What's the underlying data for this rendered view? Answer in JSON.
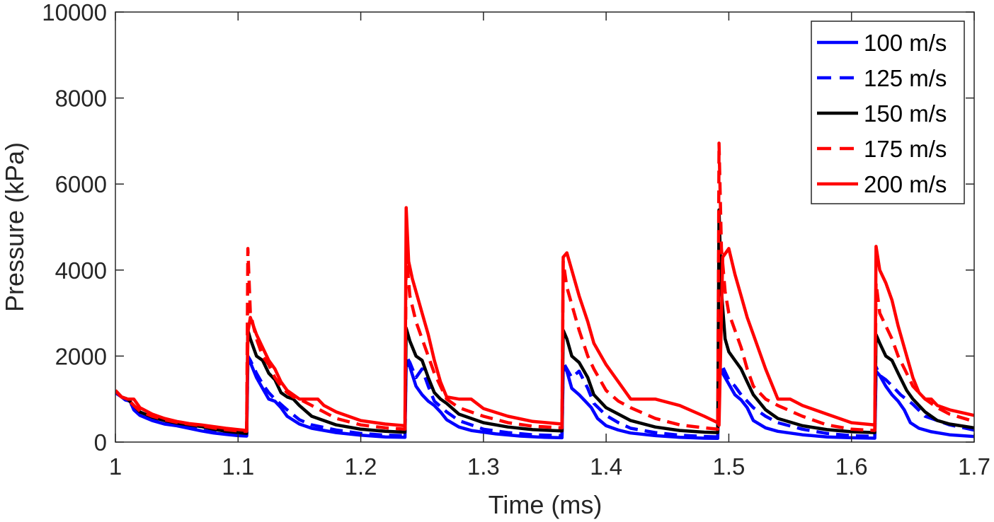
{
  "chart_data": {
    "type": "line",
    "title": "",
    "xlabel": "Time (ms)",
    "ylabel": "Pressure (kPa)",
    "xlim": [
      1,
      1.7
    ],
    "ylim": [
      0,
      10000
    ],
    "xticks": [
      "1",
      "1.1",
      "1.2",
      "1.3",
      "1.4",
      "1.5",
      "1.6",
      "1.7"
    ],
    "yticks": [
      "0",
      "2000",
      "4000",
      "6000",
      "8000",
      "10000"
    ],
    "legend_position": "top-right",
    "series": [
      {
        "name": "100 m/s",
        "color": "#0000ff",
        "style": "solid",
        "x": [
          1.0,
          1.005,
          1.008,
          1.012,
          1.015,
          1.02,
          1.03,
          1.04,
          1.05,
          1.06,
          1.07,
          1.08,
          1.09,
          1.1,
          1.107,
          1.108,
          1.11,
          1.115,
          1.12,
          1.125,
          1.13,
          1.135,
          1.14,
          1.15,
          1.16,
          1.18,
          1.2,
          1.22,
          1.236,
          1.237,
          1.24,
          1.245,
          1.25,
          1.255,
          1.26,
          1.265,
          1.27,
          1.28,
          1.29,
          1.31,
          1.33,
          1.35,
          1.364,
          1.365,
          1.368,
          1.372,
          1.378,
          1.383,
          1.388,
          1.393,
          1.4,
          1.41,
          1.42,
          1.44,
          1.46,
          1.48,
          1.491,
          1.492,
          1.495,
          1.5,
          1.505,
          1.51,
          1.515,
          1.52,
          1.53,
          1.54,
          1.56,
          1.58,
          1.6,
          1.619,
          1.62,
          1.623,
          1.628,
          1.633,
          1.638,
          1.643,
          1.648,
          1.655,
          1.665,
          1.68,
          1.7
        ],
        "y": [
          1150,
          1050,
          980,
          950,
          750,
          620,
          500,
          420,
          380,
          320,
          260,
          210,
          180,
          150,
          140,
          1900,
          1850,
          1500,
          1250,
          1000,
          950,
          800,
          600,
          420,
          320,
          220,
          160,
          120,
          110,
          1850,
          1750,
          1300,
          1100,
          950,
          850,
          700,
          520,
          350,
          270,
          190,
          140,
          110,
          100,
          1750,
          1650,
          1250,
          1100,
          950,
          800,
          550,
          380,
          280,
          210,
          150,
          110,
          90,
          85,
          1750,
          1600,
          1350,
          1100,
          980,
          800,
          500,
          330,
          250,
          170,
          120,
          100,
          90,
          1650,
          1550,
          1300,
          1100,
          950,
          750,
          450,
          320,
          240,
          170,
          130
        ]
      },
      {
        "name": "125 m/s",
        "color": "#0000ff",
        "style": "dashed",
        "x": [
          1.0,
          1.005,
          1.01,
          1.015,
          1.02,
          1.03,
          1.04,
          1.05,
          1.06,
          1.07,
          1.08,
          1.09,
          1.1,
          1.107,
          1.108,
          1.11,
          1.115,
          1.12,
          1.125,
          1.13,
          1.14,
          1.15,
          1.16,
          1.18,
          1.2,
          1.22,
          1.236,
          1.237,
          1.24,
          1.245,
          1.25,
          1.255,
          1.26,
          1.27,
          1.28,
          1.3,
          1.32,
          1.34,
          1.364,
          1.365,
          1.368,
          1.372,
          1.378,
          1.385,
          1.39,
          1.4,
          1.41,
          1.42,
          1.44,
          1.46,
          1.48,
          1.491,
          1.492,
          1.495,
          1.5,
          1.505,
          1.51,
          1.52,
          1.53,
          1.54,
          1.56,
          1.58,
          1.6,
          1.619,
          1.62,
          1.623,
          1.628,
          1.635,
          1.64,
          1.65,
          1.66,
          1.68,
          1.7
        ],
        "y": [
          1150,
          1050,
          980,
          800,
          650,
          530,
          450,
          400,
          340,
          280,
          230,
          200,
          170,
          160,
          2000,
          1900,
          1600,
          1350,
          1150,
          1000,
          750,
          520,
          400,
          280,
          200,
          160,
          150,
          2000,
          1850,
          1500,
          1700,
          1300,
          950,
          700,
          500,
          300,
          220,
          170,
          150,
          1850,
          1700,
          1500,
          1650,
          1250,
          900,
          620,
          450,
          320,
          220,
          160,
          130,
          120,
          1900,
          1750,
          1450,
          1300,
          1100,
          800,
          600,
          450,
          300,
          200,
          150,
          130,
          1750,
          1550,
          1450,
          1250,
          1100,
          880,
          600,
          400,
          280
        ]
      },
      {
        "name": "150 m/s",
        "color": "#000000",
        "style": "solid",
        "x": [
          1.0,
          1.005,
          1.01,
          1.015,
          1.02,
          1.03,
          1.04,
          1.05,
          1.06,
          1.07,
          1.08,
          1.09,
          1.1,
          1.107,
          1.108,
          1.11,
          1.115,
          1.12,
          1.125,
          1.13,
          1.135,
          1.14,
          1.145,
          1.15,
          1.16,
          1.18,
          1.2,
          1.22,
          1.236,
          1.237,
          1.24,
          1.245,
          1.25,
          1.255,
          1.26,
          1.265,
          1.27,
          1.28,
          1.3,
          1.32,
          1.34,
          1.364,
          1.365,
          1.368,
          1.372,
          1.378,
          1.385,
          1.39,
          1.4,
          1.41,
          1.42,
          1.44,
          1.46,
          1.48,
          1.491,
          1.492,
          1.494,
          1.497,
          1.5,
          1.505,
          1.51,
          1.515,
          1.52,
          1.53,
          1.54,
          1.56,
          1.58,
          1.6,
          1.619,
          1.62,
          1.623,
          1.628,
          1.633,
          1.638,
          1.645,
          1.65,
          1.66,
          1.67,
          1.68,
          1.7
        ],
        "y": [
          1200,
          1050,
          1000,
          850,
          700,
          580,
          500,
          440,
          400,
          360,
          300,
          250,
          220,
          200,
          2600,
          2400,
          2000,
          1900,
          1600,
          1450,
          1150,
          1050,
          1000,
          850,
          600,
          400,
          300,
          250,
          230,
          2650,
          2350,
          2000,
          1900,
          1500,
          1150,
          1000,
          900,
          650,
          450,
          350,
          290,
          260,
          2600,
          2400,
          2000,
          1850,
          1500,
          1100,
          800,
          650,
          500,
          350,
          270,
          230,
          220,
          5400,
          3500,
          2400,
          2100,
          1900,
          1700,
          1400,
          1100,
          750,
          550,
          380,
          290,
          240,
          220,
          2500,
          2300,
          2000,
          1900,
          1600,
          1200,
          1000,
          700,
          500,
          420,
          330
        ]
      },
      {
        "name": "175 m/s",
        "color": "#ff0000",
        "style": "dashed",
        "x": [
          1.0,
          1.005,
          1.01,
          1.015,
          1.02,
          1.03,
          1.04,
          1.05,
          1.06,
          1.07,
          1.08,
          1.09,
          1.1,
          1.107,
          1.108,
          1.11,
          1.115,
          1.12,
          1.125,
          1.13,
          1.135,
          1.14,
          1.145,
          1.15,
          1.16,
          1.18,
          1.2,
          1.22,
          1.236,
          1.237,
          1.24,
          1.245,
          1.25,
          1.255,
          1.26,
          1.265,
          1.27,
          1.28,
          1.3,
          1.32,
          1.34,
          1.364,
          1.365,
          1.368,
          1.372,
          1.378,
          1.385,
          1.39,
          1.4,
          1.41,
          1.42,
          1.44,
          1.46,
          1.48,
          1.491,
          1.492,
          1.494,
          1.497,
          1.5,
          1.505,
          1.51,
          1.515,
          1.52,
          1.53,
          1.54,
          1.56,
          1.58,
          1.6,
          1.619,
          1.62,
          1.623,
          1.628,
          1.633,
          1.638,
          1.645,
          1.65,
          1.66,
          1.67,
          1.68,
          1.7
        ],
        "y": [
          1200,
          1050,
          1000,
          850,
          720,
          600,
          520,
          460,
          420,
          380,
          330,
          290,
          260,
          250,
          4500,
          3000,
          2400,
          2000,
          1800,
          1500,
          1300,
          1150,
          1050,
          1000,
          850,
          550,
          400,
          330,
          300,
          4400,
          3400,
          2800,
          2400,
          2000,
          1600,
          1300,
          1000,
          800,
          600,
          450,
          370,
          330,
          4200,
          3600,
          3200,
          2600,
          2000,
          1700,
          1200,
          950,
          800,
          550,
          400,
          330,
          300,
          6950,
          4500,
          3500,
          3000,
          2600,
          2200,
          1700,
          1300,
          1000,
          850,
          600,
          400,
          300,
          270,
          3700,
          3000,
          2700,
          2400,
          2000,
          1600,
          1300,
          1000,
          800,
          650,
          480
        ]
      },
      {
        "name": "200 m/s",
        "color": "#ff0000",
        "style": "solid",
        "x": [
          1.0,
          1.003,
          1.005,
          1.01,
          1.015,
          1.02,
          1.03,
          1.04,
          1.05,
          1.06,
          1.07,
          1.08,
          1.09,
          1.1,
          1.107,
          1.108,
          1.11,
          1.115,
          1.12,
          1.125,
          1.13,
          1.135,
          1.14,
          1.15,
          1.16,
          1.165,
          1.17,
          1.18,
          1.2,
          1.22,
          1.236,
          1.237,
          1.239,
          1.242,
          1.245,
          1.25,
          1.255,
          1.26,
          1.265,
          1.27,
          1.28,
          1.29,
          1.3,
          1.32,
          1.34,
          1.364,
          1.365,
          1.368,
          1.372,
          1.378,
          1.385,
          1.39,
          1.4,
          1.41,
          1.42,
          1.44,
          1.46,
          1.48,
          1.491,
          1.492,
          1.495,
          1.5,
          1.505,
          1.51,
          1.515,
          1.52,
          1.53,
          1.54,
          1.545,
          1.55,
          1.56,
          1.58,
          1.6,
          1.619,
          1.62,
          1.623,
          1.628,
          1.633,
          1.638,
          1.645,
          1.65,
          1.655,
          1.66,
          1.665,
          1.67,
          1.68,
          1.7
        ],
        "y": [
          1200,
          1100,
          1050,
          1000,
          1000,
          800,
          650,
          550,
          480,
          430,
          400,
          360,
          320,
          290,
          270,
          2550,
          2900,
          2500,
          2200,
          1900,
          1700,
          1400,
          1200,
          1000,
          1000,
          1000,
          850,
          700,
          500,
          420,
          380,
          5450,
          4200,
          3800,
          3500,
          3000,
          2500,
          1900,
          1400,
          1050,
          1000,
          1000,
          780,
          600,
          480,
          420,
          4300,
          4400,
          4000,
          3400,
          2800,
          2300,
          1800,
          1400,
          1000,
          1000,
          850,
          600,
          450,
          390,
          4300,
          4500,
          3900,
          3400,
          2900,
          2500,
          1700,
          1000,
          1000,
          1000,
          850,
          650,
          450,
          400,
          4550,
          4000,
          3700,
          3300,
          2700,
          2000,
          1500,
          1150,
          1000,
          1000,
          850,
          750,
          620
        ]
      }
    ]
  }
}
